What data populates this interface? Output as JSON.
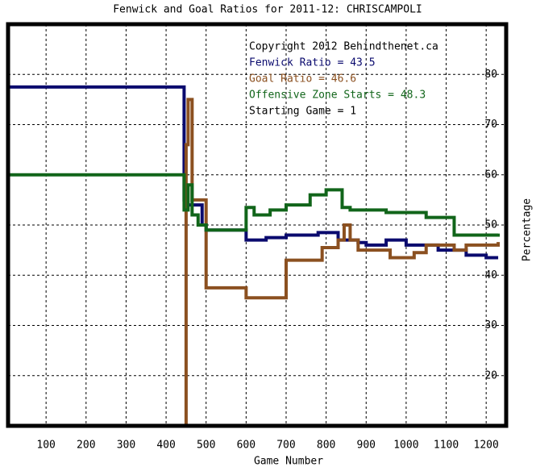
{
  "chart_data": {
    "type": "line",
    "step": true,
    "title": "Fenwick and Goal Ratios for 2011-12: CHRISCAMPOLI",
    "x_label": "Game Number",
    "y_label": "Percentage",
    "xlim": [
      5,
      1250
    ],
    "ylim": [
      10,
      90
    ],
    "xticks": [
      100,
      200,
      300,
      400,
      500,
      600,
      700,
      800,
      900,
      1000,
      1100,
      1200
    ],
    "yticks": [
      20,
      30,
      40,
      50,
      60,
      70,
      80
    ],
    "grid": true,
    "annotations": [
      {
        "text": "Copyright 2012 Behindthenet.ca",
        "color": "#000000"
      },
      {
        "text": "Starting Game = 1",
        "color": "#000000"
      }
    ],
    "series": [
      {
        "name": "Fenwick Ratio = 43.5",
        "color": "#0a0a6e",
        "x": [
          5,
          445,
          450,
          490,
          500,
          600,
          610,
          650,
          700,
          780,
          830,
          880,
          900,
          950,
          1000,
          1050,
          1080,
          1150,
          1200,
          1230
        ],
        "values": [
          77.5,
          55,
          54,
          50,
          49,
          47,
          47,
          47.5,
          48,
          48.5,
          47,
          46.5,
          46,
          47,
          46,
          46,
          45,
          44,
          43.5,
          43.5
        ]
      },
      {
        "name": "Goal Ratio = 46.6",
        "color": "#8b5020",
        "x": [
          445,
          450,
          455,
          465,
          475,
          500,
          600,
          700,
          790,
          830,
          845,
          860,
          880,
          960,
          1020,
          1050,
          1120,
          1150,
          1230
        ],
        "values": [
          10,
          66,
          75,
          55,
          55,
          37.5,
          35.5,
          43,
          45.5,
          47,
          50,
          47,
          45,
          43.5,
          44.5,
          46,
          45,
          46,
          46.6
        ]
      },
      {
        "name": "Offensive Zone Starts = 48.3",
        "color": "#11651a",
        "x": [
          5,
          445,
          455,
          465,
          480,
          500,
          600,
          620,
          660,
          700,
          760,
          800,
          840,
          860,
          950,
          1050,
          1120,
          1230
        ],
        "values": [
          60,
          53,
          58,
          52,
          50,
          49,
          53.5,
          52,
          53,
          54,
          56,
          57,
          53.5,
          53,
          52.5,
          51.5,
          48,
          48.3
        ]
      }
    ]
  }
}
